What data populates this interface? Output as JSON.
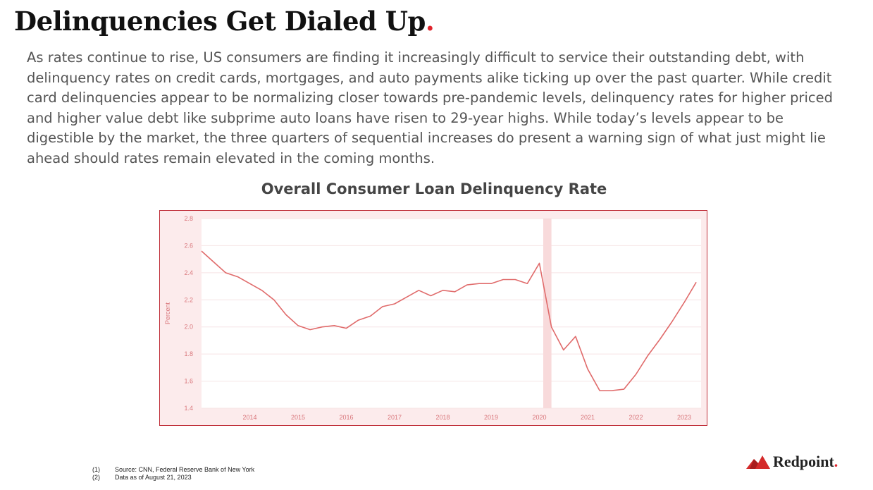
{
  "header": {
    "title": "Delinquencies Get Dialed Up",
    "title_dot": ".",
    "accent_color": "#e0242c"
  },
  "intro": {
    "paragraph": "As rates continue to rise, US consumers are finding it increasingly difficult to service their outstanding debt, with delinquency rates on credit cards, mortgages, and auto payments alike ticking up over the past quarter. While credit card delinquencies appear to be normalizing closer towards pre-pandemic levels, delinquency rates for higher priced and higher value debt like subprime auto loans have risen to 29-year highs. While today’s levels appear to be digestible by the market, the three quarters of sequential increases do present a warning sign of what just might lie ahead should rates remain elevated in the coming months."
  },
  "chart_data": {
    "type": "line",
    "title": "Overall Consumer Loan Delinquency Rate",
    "xlabel": "",
    "ylabel": "Percent",
    "ylim": [
      1.4,
      2.8
    ],
    "xlim": [
      2013.0,
      2023.35
    ],
    "yticks": [
      "1.4",
      "1.6",
      "1.8",
      "2.0",
      "2.2",
      "2.4",
      "2.6",
      "2.8"
    ],
    "xticks": [
      "2014",
      "2015",
      "2016",
      "2017",
      "2018",
      "2019",
      "2020",
      "2021",
      "2022",
      "2023"
    ],
    "recession_band": {
      "start": 2020.08,
      "end": 2020.25
    },
    "line_color": "#e06b6b",
    "series": [
      {
        "name": "Delinquency Rate",
        "x": [
          2013.0,
          2013.25,
          2013.5,
          2013.75,
          2014.0,
          2014.25,
          2014.5,
          2014.75,
          2015.0,
          2015.25,
          2015.5,
          2015.75,
          2016.0,
          2016.25,
          2016.5,
          2016.75,
          2017.0,
          2017.25,
          2017.5,
          2017.75,
          2018.0,
          2018.25,
          2018.5,
          2018.75,
          2019.0,
          2019.25,
          2019.5,
          2019.75,
          2020.0,
          2020.25,
          2020.5,
          2020.75,
          2021.0,
          2021.25,
          2021.5,
          2021.75,
          2022.0,
          2022.25,
          2022.5,
          2022.75,
          2023.0,
          2023.25
        ],
        "values": [
          2.56,
          2.48,
          2.4,
          2.37,
          2.32,
          2.27,
          2.2,
          2.09,
          2.01,
          1.98,
          2.0,
          2.01,
          1.99,
          2.05,
          2.08,
          2.15,
          2.17,
          2.22,
          2.27,
          2.23,
          2.27,
          2.26,
          2.31,
          2.32,
          2.32,
          2.35,
          2.35,
          2.32,
          2.47,
          2.0,
          1.83,
          1.93,
          1.69,
          1.53,
          1.53,
          1.54,
          1.65,
          1.79,
          1.91,
          2.04,
          2.18,
          2.33
        ]
      }
    ]
  },
  "footnotes": [
    {
      "num": "(1)",
      "text": "Source: CNN, Federal Reserve Bank of New York"
    },
    {
      "num": "(2)",
      "text": "Data as of August 21, 2023"
    }
  ],
  "logo": {
    "text": "Redpoint",
    "dot": "."
  }
}
